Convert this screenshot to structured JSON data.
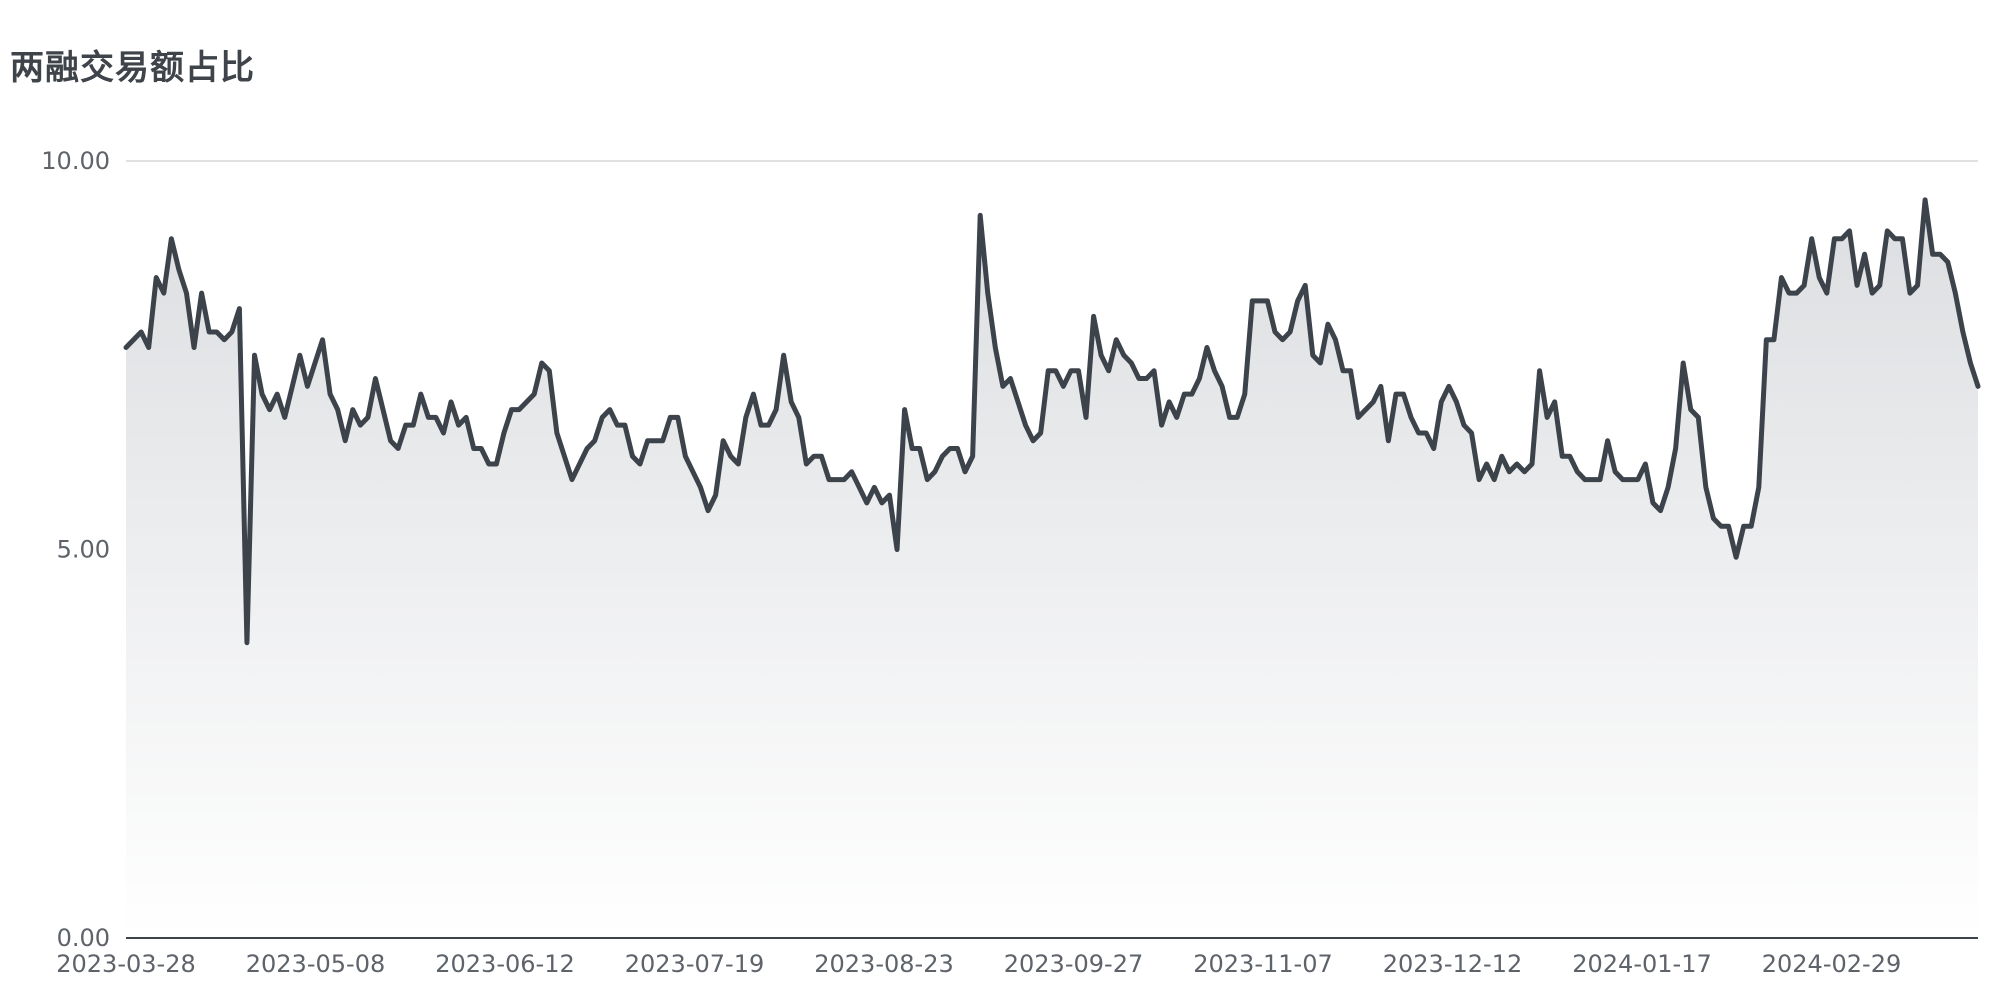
{
  "chart_data": {
    "type": "area",
    "title": "两融交易额占比",
    "xlabel": "",
    "ylabel": "",
    "ylim": [
      0,
      10
    ],
    "y_ticks": [
      "0.00",
      "5.00",
      "10.00"
    ],
    "x_tick_labels": [
      "2023-03-28",
      "2023-05-08",
      "2023-06-12",
      "2023-07-19",
      "2023-08-23",
      "2023-09-27",
      "2023-11-07",
      "2023-12-12",
      "2024-01-17",
      "2024-02-29"
    ],
    "grid": true,
    "colors": {
      "line": "#3d434b",
      "fill_top": "#dcdee1",
      "fill_bottom": "#ffffff",
      "grid": "#d5d7da",
      "axis": "#3d434b",
      "tick_text": "#5e636a"
    },
    "series": [
      {
        "values": [
          7.6,
          7.7,
          7.8,
          7.6,
          8.5,
          8.3,
          9.0,
          8.6,
          8.3,
          7.6,
          8.3,
          7.8,
          7.8,
          7.7,
          7.8,
          8.1,
          3.8,
          7.5,
          7.0,
          6.8,
          7.0,
          6.7,
          7.1,
          7.5,
          7.1,
          7.4,
          7.7,
          7.0,
          6.8,
          6.4,
          6.8,
          6.6,
          6.7,
          7.2,
          6.8,
          6.4,
          6.3,
          6.6,
          6.6,
          7.0,
          6.7,
          6.7,
          6.5,
          6.9,
          6.6,
          6.7,
          6.3,
          6.3,
          6.1,
          6.1,
          6.5,
          6.8,
          6.8,
          6.9,
          7.0,
          7.4,
          7.3,
          6.5,
          6.2,
          5.9,
          6.1,
          6.3,
          6.4,
          6.7,
          6.8,
          6.6,
          6.6,
          6.2,
          6.1,
          6.4,
          6.4,
          6.4,
          6.7,
          6.7,
          6.2,
          6.0,
          5.8,
          5.5,
          5.7,
          6.4,
          6.2,
          6.1,
          6.7,
          7.0,
          6.6,
          6.6,
          6.8,
          7.5,
          6.9,
          6.7,
          6.1,
          6.2,
          6.2,
          5.9,
          5.9,
          5.9,
          6.0,
          5.8,
          5.6,
          5.8,
          5.6,
          5.7,
          5.0,
          6.8,
          6.3,
          6.3,
          5.9,
          6.0,
          6.2,
          6.3,
          6.3,
          6.0,
          6.2,
          9.3,
          8.3,
          7.6,
          7.1,
          7.2,
          6.9,
          6.6,
          6.4,
          6.5,
          7.3,
          7.3,
          7.1,
          7.3,
          7.3,
          6.7,
          8.0,
          7.5,
          7.3,
          7.7,
          7.5,
          7.4,
          7.2,
          7.2,
          7.3,
          6.6,
          6.9,
          6.7,
          7.0,
          7.0,
          7.2,
          7.6,
          7.3,
          7.1,
          6.7,
          6.7,
          7.0,
          8.2,
          8.2,
          8.2,
          7.8,
          7.7,
          7.8,
          8.2,
          8.4,
          7.5,
          7.4,
          7.9,
          7.7,
          7.3,
          7.3,
          6.7,
          6.8,
          6.9,
          7.1,
          6.4,
          7.0,
          7.0,
          6.7,
          6.5,
          6.5,
          6.3,
          6.9,
          7.1,
          6.9,
          6.6,
          6.5,
          5.9,
          6.1,
          5.9,
          6.2,
          6.0,
          6.1,
          6.0,
          6.1,
          7.3,
          6.7,
          6.9,
          6.2,
          6.2,
          6.0,
          5.9,
          5.9,
          5.9,
          6.4,
          6.0,
          5.9,
          5.9,
          5.9,
          6.1,
          5.6,
          5.5,
          5.8,
          6.3,
          7.4,
          6.8,
          6.7,
          5.8,
          5.4,
          5.3,
          5.3,
          4.9,
          5.3,
          5.3,
          5.8,
          7.7,
          7.7,
          8.5,
          8.3,
          8.3,
          8.4,
          9.0,
          8.5,
          8.3,
          9.0,
          9.0,
          9.1,
          8.4,
          8.8,
          8.3,
          8.4,
          9.1,
          9.0,
          9.0,
          8.3,
          8.4,
          9.5,
          8.8,
          8.8,
          8.7,
          8.3,
          7.8,
          7.4,
          7.1
        ]
      }
    ]
  }
}
